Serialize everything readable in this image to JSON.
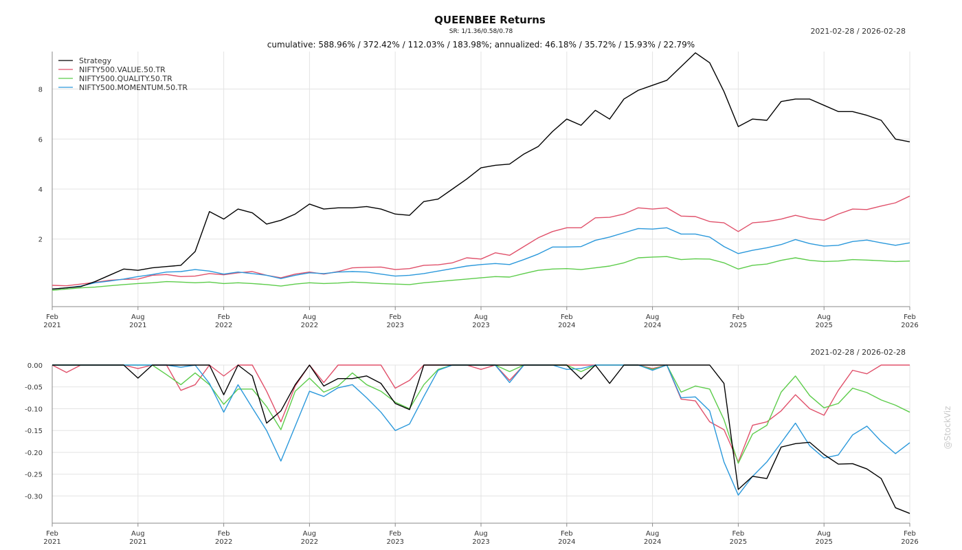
{
  "title": "QUEENBEE Returns",
  "sr_text": "SR: 1/1.36/0.58/0.78",
  "subtitle": "cumulative: 588.96% / 372.42% / 112.03% / 183.98%; annualized: 46.18% / 35.72% / 15.93% / 22.79%",
  "date_range_top": "2021-02-28 / 2026-02-28",
  "date_range_bottom": "2021-02-28 / 2026-02-28",
  "watermark": "@StockViz",
  "x_ticks": [
    {
      "m": 0,
      "l1": "Feb",
      "l2": "2021"
    },
    {
      "m": 6,
      "l1": "Aug",
      "l2": "2021"
    },
    {
      "m": 12,
      "l1": "Feb",
      "l2": "2022"
    },
    {
      "m": 18,
      "l1": "Aug",
      "l2": "2022"
    },
    {
      "m": 24,
      "l1": "Feb",
      "l2": "2023"
    },
    {
      "m": 30,
      "l1": "Aug",
      "l2": "2023"
    },
    {
      "m": 36,
      "l1": "Feb",
      "l2": "2024"
    },
    {
      "m": 42,
      "l1": "Aug",
      "l2": "2024"
    },
    {
      "m": 48,
      "l1": "Feb",
      "l2": "2025"
    },
    {
      "m": 54,
      "l1": "Aug",
      "l2": "2025"
    },
    {
      "m": 60,
      "l1": "Feb",
      "l2": "2026"
    }
  ],
  "colors": {
    "Strategy": "#000000",
    "NIFTY500.VALUE.50.TR": "#e0506a",
    "NIFTY500.QUALITY.50.TR": "#5ccc4a",
    "NIFTY500.MOMENTUM.50.TR": "#2a98db"
  },
  "chart_data": [
    {
      "type": "line",
      "panel": "cumulative",
      "x_unit": "months since Feb 2021",
      "ylim": [
        -0.4,
        9.5
      ],
      "y_ticks": [
        {
          "v": 2,
          "label": "2"
        },
        {
          "v": 4,
          "label": "4"
        },
        {
          "v": 6,
          "label": "6"
        },
        {
          "v": 8,
          "label": "8"
        }
      ],
      "grid": true,
      "legend": "top-left",
      "series": [
        {
          "name": "Strategy",
          "values": [
            0.0,
            0.05,
            0.1,
            0.3,
            0.55,
            0.8,
            0.75,
            0.85,
            0.9,
            0.95,
            1.5,
            3.1,
            2.8,
            3.2,
            3.05,
            2.6,
            2.75,
            3.0,
            3.4,
            3.2,
            3.25,
            3.25,
            3.3,
            3.2,
            3.0,
            2.95,
            3.5,
            3.6,
            4.0,
            4.4,
            4.85,
            4.95,
            5.0,
            5.4,
            5.7,
            6.3,
            6.8,
            6.55,
            7.15,
            6.8,
            7.6,
            7.95,
            8.15,
            8.35,
            8.9,
            9.45,
            9.05,
            7.9,
            6.5,
            6.8,
            6.75,
            7.5,
            7.6,
            7.6,
            7.35,
            7.1,
            7.1,
            6.95,
            6.75,
            6.0,
            5.89
          ]
        },
        {
          "name": "NIFTY500.VALUE.50.TR",
          "values": [
            0.15,
            0.13,
            0.2,
            0.27,
            0.35,
            0.39,
            0.4,
            0.55,
            0.58,
            0.5,
            0.52,
            0.62,
            0.57,
            0.65,
            0.7,
            0.55,
            0.45,
            0.6,
            0.68,
            0.6,
            0.7,
            0.85,
            0.87,
            0.88,
            0.78,
            0.82,
            0.95,
            0.97,
            1.05,
            1.25,
            1.2,
            1.45,
            1.35,
            1.7,
            2.05,
            2.3,
            2.45,
            2.45,
            2.85,
            2.87,
            3.0,
            3.25,
            3.2,
            3.25,
            2.92,
            2.9,
            2.7,
            2.65,
            2.3,
            2.65,
            2.7,
            2.8,
            2.95,
            2.82,
            2.75,
            3.0,
            3.2,
            3.18,
            3.32,
            3.45,
            3.72
          ]
        },
        {
          "name": "NIFTY500.QUALITY.50.TR",
          "values": [
            -0.05,
            0.0,
            0.05,
            0.08,
            0.13,
            0.18,
            0.22,
            0.25,
            0.3,
            0.28,
            0.25,
            0.28,
            0.22,
            0.25,
            0.22,
            0.18,
            0.12,
            0.2,
            0.25,
            0.22,
            0.24,
            0.28,
            0.25,
            0.22,
            0.2,
            0.18,
            0.25,
            0.3,
            0.35,
            0.4,
            0.45,
            0.5,
            0.48,
            0.62,
            0.75,
            0.8,
            0.82,
            0.78,
            0.85,
            0.92,
            1.05,
            1.25,
            1.28,
            1.3,
            1.18,
            1.21,
            1.2,
            1.05,
            0.8,
            0.95,
            1.0,
            1.15,
            1.25,
            1.15,
            1.1,
            1.12,
            1.18,
            1.16,
            1.13,
            1.1,
            1.12
          ]
        },
        {
          "name": "NIFTY500.MOMENTUM.50.TR",
          "values": [
            0.0,
            0.05,
            0.12,
            0.25,
            0.32,
            0.4,
            0.5,
            0.58,
            0.68,
            0.7,
            0.78,
            0.72,
            0.6,
            0.68,
            0.62,
            0.55,
            0.42,
            0.55,
            0.65,
            0.62,
            0.68,
            0.7,
            0.68,
            0.6,
            0.52,
            0.55,
            0.62,
            0.72,
            0.82,
            0.92,
            0.98,
            1.02,
            0.98,
            1.18,
            1.4,
            1.68,
            1.68,
            1.7,
            1.95,
            2.08,
            2.25,
            2.42,
            2.4,
            2.45,
            2.2,
            2.2,
            2.08,
            1.7,
            1.42,
            1.55,
            1.65,
            1.78,
            1.98,
            1.82,
            1.72,
            1.75,
            1.9,
            1.96,
            1.85,
            1.75,
            1.85
          ]
        }
      ]
    },
    {
      "type": "line",
      "panel": "drawdown",
      "x_unit": "months since Feb 2021",
      "ylim": [
        -0.345,
        0.0
      ],
      "y_ticks": [
        {
          "v": 0.0,
          "label": "0.00"
        },
        {
          "v": -0.05,
          "label": "-0.05"
        },
        {
          "v": -0.1,
          "label": "-0.10"
        },
        {
          "v": -0.15,
          "label": "-0.15"
        },
        {
          "v": -0.2,
          "label": "-0.20"
        },
        {
          "v": -0.25,
          "label": "-0.25"
        },
        {
          "v": -0.3,
          "label": "-0.30"
        }
      ],
      "grid": true,
      "series": [
        {
          "name": "Strategy",
          "values": [
            0.0,
            0.0,
            0.0,
            0.0,
            0.0,
            0.0,
            -0.03,
            0.0,
            0.0,
            0.0,
            0.0,
            0.0,
            -0.068,
            0.0,
            -0.025,
            -0.133,
            -0.105,
            -0.045,
            0.0,
            -0.048,
            -0.031,
            -0.031,
            -0.025,
            -0.042,
            -0.088,
            -0.102,
            0.0,
            0.0,
            0.0,
            0.0,
            0.0,
            0.0,
            0.0,
            0.0,
            0.0,
            0.0,
            0.0,
            -0.032,
            0.0,
            -0.042,
            0.0,
            0.0,
            0.0,
            0.0,
            0.0,
            0.0,
            0.0,
            -0.042,
            -0.285,
            -0.255,
            -0.26,
            -0.188,
            -0.18,
            -0.177,
            -0.205,
            -0.227,
            -0.226,
            -0.238,
            -0.26,
            -0.327,
            -0.34
          ]
        },
        {
          "name": "NIFTY500.VALUE.50.TR",
          "values": [
            0.0,
            -0.017,
            0.0,
            0.0,
            0.0,
            0.0,
            -0.008,
            0.0,
            0.0,
            -0.058,
            -0.045,
            0.0,
            -0.025,
            0.0,
            0.0,
            -0.06,
            -0.13,
            -0.048,
            0.0,
            -0.04,
            0.0,
            0.0,
            0.0,
            0.0,
            -0.053,
            -0.035,
            0.0,
            0.0,
            0.0,
            0.0,
            -0.01,
            0.0,
            -0.035,
            0.0,
            0.0,
            0.0,
            0.0,
            0.0,
            0.0,
            0.0,
            0.0,
            0.0,
            -0.008,
            0.0,
            -0.078,
            -0.082,
            -0.13,
            -0.148,
            -0.222,
            -0.138,
            -0.13,
            -0.105,
            -0.068,
            -0.1,
            -0.115,
            -0.058,
            -0.012,
            -0.02,
            0.0,
            0.0,
            0.0
          ]
        },
        {
          "name": "NIFTY500.QUALITY.50.TR",
          "values": [
            0.0,
            0.0,
            0.0,
            0.0,
            0.0,
            0.0,
            0.0,
            0.0,
            -0.022,
            -0.045,
            -0.018,
            -0.045,
            -0.09,
            -0.055,
            -0.055,
            -0.095,
            -0.148,
            -0.06,
            -0.03,
            -0.062,
            -0.048,
            -0.018,
            -0.045,
            -0.06,
            -0.085,
            -0.1,
            -0.045,
            -0.01,
            0.0,
            0.0,
            0.0,
            0.0,
            -0.015,
            0.0,
            0.0,
            0.0,
            0.0,
            -0.015,
            0.0,
            0.0,
            0.0,
            0.0,
            -0.01,
            0.0,
            -0.062,
            -0.048,
            -0.055,
            -0.125,
            -0.225,
            -0.158,
            -0.138,
            -0.062,
            -0.025,
            -0.07,
            -0.098,
            -0.088,
            -0.053,
            -0.063,
            -0.08,
            -0.092,
            -0.108
          ]
        },
        {
          "name": "NIFTY500.MOMENTUM.50.TR",
          "values": [
            0.0,
            0.0,
            0.0,
            0.0,
            0.0,
            0.0,
            0.0,
            0.0,
            0.0,
            -0.005,
            0.0,
            -0.042,
            -0.108,
            -0.045,
            -0.098,
            -0.15,
            -0.22,
            -0.14,
            -0.06,
            -0.072,
            -0.052,
            -0.045,
            -0.075,
            -0.108,
            -0.15,
            -0.135,
            -0.072,
            -0.012,
            0.0,
            0.0,
            0.0,
            0.0,
            -0.04,
            0.0,
            0.0,
            0.0,
            -0.01,
            -0.008,
            0.0,
            0.0,
            0.0,
            0.0,
            -0.012,
            0.0,
            -0.075,
            -0.073,
            -0.105,
            -0.222,
            -0.298,
            -0.255,
            -0.222,
            -0.178,
            -0.133,
            -0.185,
            -0.213,
            -0.206,
            -0.16,
            -0.14,
            -0.175,
            -0.203,
            -0.178
          ]
        }
      ]
    }
  ]
}
